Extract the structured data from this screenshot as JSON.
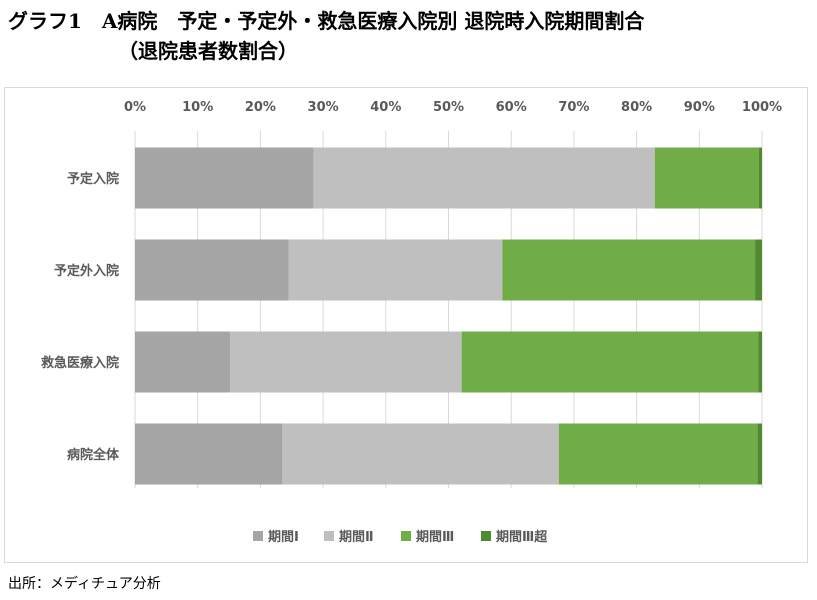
{
  "title_line1": "グラフ1　A病院　予定・予定外・救急医療入院別 退院時入院期間割合",
  "title_line2": "（退院患者数割合）",
  "source": "出所：メディチュア分析",
  "colors": {
    "period1": "#a5a5a5",
    "period2": "#bfbfbf",
    "period3": "#70ad47",
    "period3_over": "#4f8a2f",
    "grid": "#d9d9d9",
    "text": "#595959"
  },
  "chart_data": {
    "type": "bar",
    "orientation": "horizontal",
    "stacked": "percent",
    "categories": [
      "予定入院",
      "予定外入院",
      "救急医療入院",
      "病院全体"
    ],
    "series": [
      {
        "name": "期間Ⅰ",
        "values": [
          28.5,
          24.5,
          15.2,
          23.5
        ]
      },
      {
        "name": "期間Ⅱ",
        "values": [
          54.4,
          34.1,
          36.9,
          44.1
        ]
      },
      {
        "name": "期間Ⅲ",
        "values": [
          16.6,
          40.3,
          47.3,
          31.7
        ]
      },
      {
        "name": "期間Ⅲ超",
        "values": [
          0.5,
          1.1,
          0.6,
          0.7
        ]
      }
    ],
    "x_ticks": [
      "0%",
      "10%",
      "20%",
      "30%",
      "40%",
      "50%",
      "60%",
      "70%",
      "80%",
      "90%",
      "100%"
    ],
    "xlim": [
      0,
      100
    ],
    "axis_position": "top",
    "grid": true,
    "legend_position": "bottom"
  }
}
